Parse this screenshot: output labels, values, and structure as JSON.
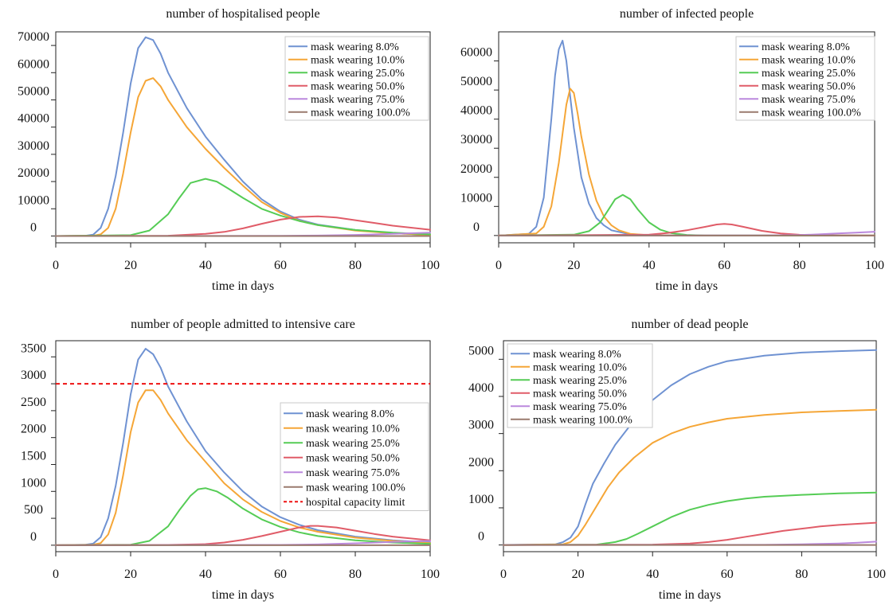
{
  "figure": {
    "colors": {
      "mask wearing 8.0%": "#6f92d2",
      "mask wearing 10.0%": "#f5a637",
      "mask wearing 25.0%": "#55cc55",
      "mask wearing 50.0%": "#e05c68",
      "mask wearing 75.0%": "#bb88dd",
      "mask wearing 100.0%": "#9a7a6e",
      "hospital capacity limit": "#ee1111"
    }
  },
  "chart_data": [
    {
      "type": "line",
      "title": "number of hospitalised people",
      "xlabel": "time in days",
      "ylabel": "",
      "xlim": [
        0,
        100
      ],
      "ylim": [
        -2500,
        75000
      ],
      "xticks": [
        0,
        20,
        40,
        60,
        80,
        100
      ],
      "yticks": [
        0,
        10000,
        20000,
        30000,
        40000,
        50000,
        60000,
        70000
      ],
      "grid": false,
      "legend": "top-right",
      "series": [
        {
          "name": "mask wearing 8.0%",
          "x": [
            0,
            8,
            10,
            12,
            14,
            16,
            18,
            20,
            22,
            24,
            26,
            28,
            30,
            35,
            40,
            45,
            50,
            55,
            60,
            65,
            70,
            80,
            90,
            100
          ],
          "y": [
            0,
            100,
            500,
            3000,
            10000,
            22000,
            38000,
            56000,
            69000,
            73000,
            72000,
            67000,
            60000,
            47000,
            36500,
            28000,
            20000,
            13500,
            9000,
            6000,
            4200,
            2200,
            1000,
            400
          ]
        },
        {
          "name": "mask wearing 10.0%",
          "x": [
            0,
            10,
            12,
            14,
            16,
            18,
            20,
            22,
            24,
            26,
            28,
            30,
            35,
            40,
            45,
            50,
            55,
            60,
            65,
            70,
            80,
            90,
            100
          ],
          "y": [
            0,
            100,
            600,
            3000,
            10000,
            23000,
            38000,
            51000,
            57000,
            58000,
            55000,
            50000,
            40000,
            32000,
            25000,
            18500,
            12500,
            8500,
            5600,
            4000,
            2000,
            1000,
            400
          ]
        },
        {
          "name": "mask wearing 25.0%",
          "x": [
            0,
            20,
            25,
            30,
            33,
            36,
            40,
            43,
            46,
            50,
            55,
            60,
            65,
            70,
            80,
            90,
            100
          ],
          "y": [
            0,
            300,
            2000,
            8000,
            14000,
            19500,
            21000,
            20000,
            17500,
            14000,
            10000,
            7500,
            5500,
            4000,
            2200,
            1200,
            600
          ]
        },
        {
          "name": "mask wearing 50.0%",
          "x": [
            0,
            30,
            40,
            45,
            50,
            55,
            60,
            65,
            70,
            75,
            80,
            85,
            90,
            100
          ],
          "y": [
            0,
            100,
            800,
            1500,
            2800,
            4500,
            6000,
            7000,
            7200,
            6800,
            5800,
            4800,
            3800,
            2300
          ]
        },
        {
          "name": "mask wearing 75.0%",
          "x": [
            0,
            60,
            70,
            80,
            90,
            100
          ],
          "y": [
            0,
            50,
            150,
            400,
            800,
            1200
          ]
        },
        {
          "name": "mask wearing 100.0%",
          "x": [
            0,
            100
          ],
          "y": [
            0,
            0
          ]
        }
      ]
    },
    {
      "type": "line",
      "title": "number of infected people",
      "xlabel": "time in days",
      "ylabel": "",
      "xlim": [
        0,
        100
      ],
      "ylim": [
        -2500,
        70000
      ],
      "xticks": [
        0,
        20,
        40,
        60,
        80,
        100
      ],
      "yticks": [
        0,
        10000,
        20000,
        30000,
        40000,
        50000,
        60000
      ],
      "grid": false,
      "legend": "top-right",
      "series": [
        {
          "name": "mask wearing 8.0%",
          "x": [
            0,
            8,
            10,
            12,
            14,
            15,
            16,
            17,
            18,
            19,
            20,
            22,
            24,
            26,
            28,
            30,
            35,
            40,
            50,
            100
          ],
          "y": [
            0,
            600,
            3000,
            13000,
            40000,
            55000,
            64000,
            67000,
            60000,
            48000,
            37000,
            20000,
            11000,
            6000,
            3500,
            1800,
            400,
            100,
            0,
            0
          ]
        },
        {
          "name": "mask wearing 10.0%",
          "x": [
            0,
            10,
            12,
            14,
            16,
            17,
            18,
            19,
            20,
            21,
            22,
            24,
            26,
            28,
            30,
            32,
            35,
            40,
            50,
            100
          ],
          "y": [
            0,
            700,
            3000,
            10000,
            25000,
            35000,
            45000,
            50500,
            49000,
            42000,
            34000,
            21000,
            12000,
            6500,
            3500,
            1800,
            600,
            100,
            0,
            0
          ]
        },
        {
          "name": "mask wearing 25.0%",
          "x": [
            0,
            20,
            24,
            27,
            29,
            31,
            33,
            35,
            37,
            40,
            43,
            46,
            50,
            55,
            60,
            100
          ],
          "y": [
            0,
            300,
            1500,
            4500,
            8500,
            12500,
            14000,
            12500,
            9000,
            4500,
            2000,
            800,
            200,
            0,
            0,
            0
          ]
        },
        {
          "name": "mask wearing 50.0%",
          "x": [
            0,
            40,
            45,
            50,
            55,
            58,
            60,
            62,
            65,
            70,
            75,
            80,
            85,
            100
          ],
          "y": [
            0,
            300,
            900,
            1800,
            3000,
            3800,
            4000,
            3800,
            3000,
            1600,
            700,
            250,
            80,
            0
          ]
        },
        {
          "name": "mask wearing 75.0%",
          "x": [
            0,
            70,
            80,
            85,
            90,
            95,
            100
          ],
          "y": [
            0,
            40,
            150,
            400,
            700,
            1000,
            1300
          ]
        },
        {
          "name": "mask wearing 100.0%",
          "x": [
            0,
            100
          ],
          "y": [
            0,
            0
          ]
        }
      ]
    },
    {
      "type": "line",
      "title": "number of people admitted to intensive care",
      "xlabel": "time in days",
      "ylabel": "",
      "xlim": [
        0,
        100
      ],
      "ylim": [
        -120,
        3800
      ],
      "xticks": [
        0,
        20,
        40,
        60,
        80,
        100
      ],
      "yticks": [
        0,
        500,
        1000,
        1500,
        2000,
        2500,
        3000,
        3500
      ],
      "grid": false,
      "legend": "center-right",
      "capacity_limit": 3000,
      "series": [
        {
          "name": "mask wearing 8.0%",
          "x": [
            0,
            8,
            10,
            12,
            14,
            16,
            18,
            20,
            22,
            24,
            26,
            28,
            30,
            35,
            40,
            45,
            50,
            55,
            60,
            65,
            70,
            80,
            90,
            100
          ],
          "y": [
            0,
            10,
            30,
            150,
            500,
            1100,
            1900,
            2800,
            3450,
            3650,
            3550,
            3300,
            2950,
            2300,
            1750,
            1350,
            1000,
            720,
            520,
            380,
            280,
            160,
            90,
            50
          ]
        },
        {
          "name": "mask wearing 10.0%",
          "x": [
            0,
            10,
            12,
            14,
            16,
            18,
            20,
            22,
            24,
            26,
            28,
            30,
            35,
            40,
            45,
            50,
            55,
            60,
            65,
            70,
            80,
            90,
            100
          ],
          "y": [
            0,
            10,
            40,
            200,
            600,
            1300,
            2100,
            2650,
            2880,
            2880,
            2700,
            2450,
            1950,
            1550,
            1150,
            850,
            620,
            450,
            330,
            250,
            140,
            80,
            40
          ]
        },
        {
          "name": "mask wearing 25.0%",
          "x": [
            0,
            20,
            25,
            30,
            33,
            36,
            38,
            40,
            43,
            46,
            50,
            55,
            60,
            65,
            70,
            80,
            90,
            100
          ],
          "y": [
            0,
            10,
            80,
            350,
            650,
            920,
            1040,
            1060,
            1000,
            880,
            680,
            480,
            340,
            240,
            170,
            90,
            50,
            25
          ]
        },
        {
          "name": "mask wearing 50.0%",
          "x": [
            0,
            30,
            40,
            45,
            50,
            55,
            60,
            65,
            68,
            70,
            75,
            80,
            85,
            90,
            100
          ],
          "y": [
            0,
            5,
            20,
            50,
            100,
            170,
            250,
            330,
            360,
            360,
            330,
            270,
            210,
            160,
            90
          ]
        },
        {
          "name": "mask wearing 75.0%",
          "x": [
            0,
            60,
            70,
            80,
            90,
            100
          ],
          "y": [
            0,
            5,
            15,
            35,
            60,
            80
          ]
        },
        {
          "name": "mask wearing 100.0%",
          "x": [
            0,
            100
          ],
          "y": [
            0,
            0
          ]
        }
      ],
      "reference_lines": [
        {
          "name": "hospital capacity limit",
          "y": 3000,
          "style": "dashed"
        }
      ]
    },
    {
      "type": "line",
      "title": "number of dead people",
      "xlabel": "time in days",
      "ylabel": "",
      "xlim": [
        0,
        100
      ],
      "ylim": [
        -180,
        5500
      ],
      "xticks": [
        0,
        20,
        40,
        60,
        80,
        100
      ],
      "yticks": [
        0,
        1000,
        2000,
        3000,
        4000,
        5000
      ],
      "grid": false,
      "legend": "top-left",
      "series": [
        {
          "name": "mask wearing 8.0%",
          "x": [
            0,
            14,
            16,
            18,
            20,
            22,
            24,
            27,
            30,
            35,
            40,
            45,
            50,
            55,
            60,
            70,
            80,
            90,
            100
          ],
          "y": [
            0,
            20,
            80,
            200,
            500,
            1100,
            1650,
            2200,
            2700,
            3350,
            3900,
            4300,
            4600,
            4800,
            4950,
            5100,
            5180,
            5220,
            5250
          ]
        },
        {
          "name": "mask wearing 10.0%",
          "x": [
            0,
            16,
            18,
            20,
            22,
            25,
            28,
            31,
            35,
            40,
            45,
            50,
            55,
            60,
            70,
            80,
            90,
            100
          ],
          "y": [
            0,
            20,
            80,
            250,
            550,
            1050,
            1550,
            1950,
            2350,
            2750,
            3000,
            3180,
            3300,
            3400,
            3500,
            3570,
            3610,
            3640
          ]
        },
        {
          "name": "mask wearing 25.0%",
          "x": [
            0,
            25,
            30,
            33,
            36,
            40,
            45,
            50,
            55,
            60,
            65,
            70,
            80,
            90,
            100
          ],
          "y": [
            0,
            10,
            80,
            160,
            300,
            500,
            750,
            950,
            1080,
            1180,
            1250,
            1300,
            1350,
            1390,
            1410
          ]
        },
        {
          "name": "mask wearing 50.0%",
          "x": [
            0,
            40,
            50,
            55,
            60,
            65,
            70,
            75,
            80,
            85,
            90,
            95,
            100
          ],
          "y": [
            0,
            10,
            40,
            80,
            140,
            220,
            300,
            380,
            440,
            500,
            540,
            570,
            600
          ]
        },
        {
          "name": "mask wearing 75.0%",
          "x": [
            0,
            70,
            80,
            90,
            95,
            100
          ],
          "y": [
            0,
            5,
            20,
            40,
            60,
            90
          ]
        },
        {
          "name": "mask wearing 100.0%",
          "x": [
            0,
            100
          ],
          "y": [
            0,
            0
          ]
        }
      ]
    }
  ]
}
